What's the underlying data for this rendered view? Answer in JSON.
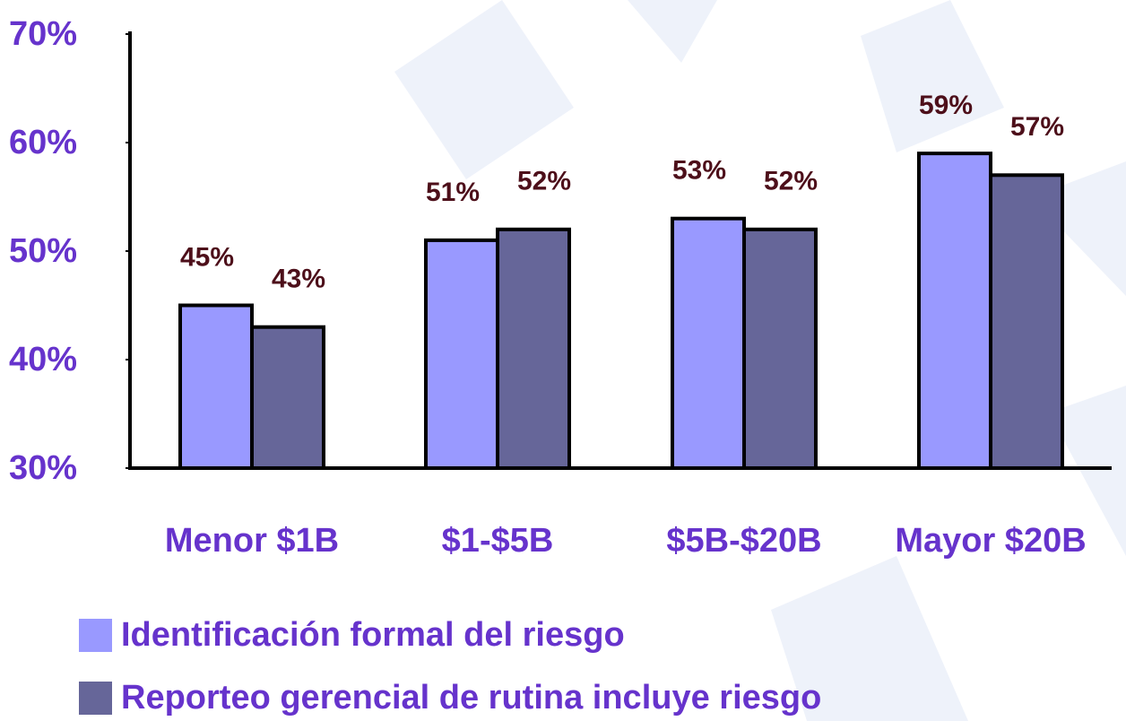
{
  "chart_data": {
    "type": "bar",
    "categories": [
      "Menor $1B",
      "$1-$5B",
      "$5B-$20B",
      "Mayor $20B"
    ],
    "series": [
      {
        "name": "Identificación formal del riesgo",
        "color": "#9999ff",
        "values": [
          45,
          51,
          53,
          59
        ],
        "value_labels": [
          "45%",
          "51%",
          "53%",
          "59%"
        ]
      },
      {
        "name": "Reporteo gerencial de rutina incluye riesgo",
        "color": "#666699",
        "values": [
          43,
          52,
          52,
          57
        ],
        "value_labels": [
          "43%",
          "52%",
          "52%",
          "57%"
        ]
      }
    ],
    "ylim": [
      30,
      70
    ],
    "yticks": [
      {
        "value": 30,
        "label": "30%"
      },
      {
        "value": 40,
        "label": "40%"
      },
      {
        "value": 50,
        "label": "50%"
      },
      {
        "value": 60,
        "label": "60%"
      },
      {
        "value": 70,
        "label": "70%"
      }
    ]
  }
}
